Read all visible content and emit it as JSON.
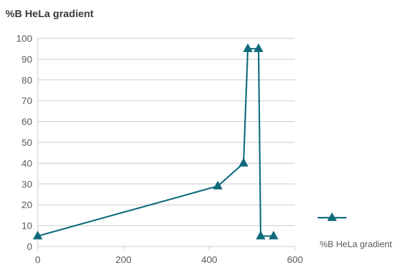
{
  "chart_data": {
    "type": "line",
    "title": "%B HeLa gradient",
    "xlabel": "",
    "ylabel": "",
    "xlim": [
      0,
      600
    ],
    "ylim": [
      0,
      100
    ],
    "x_ticks": [
      "0",
      "200",
      "400",
      "600"
    ],
    "y_ticks": [
      "0",
      "10",
      "20",
      "30",
      "40",
      "50",
      "60",
      "70",
      "80",
      "90",
      "100"
    ],
    "grid": true,
    "legend_position": "bottom-right",
    "series": [
      {
        "name": "%B HeLa gradient",
        "marker": "triangle",
        "color": "#0f6b7a",
        "x": [
          0,
          420,
          480,
          490,
          515,
          520,
          550
        ],
        "y": [
          5,
          29,
          40,
          95,
          95,
          5,
          5
        ]
      }
    ]
  }
}
